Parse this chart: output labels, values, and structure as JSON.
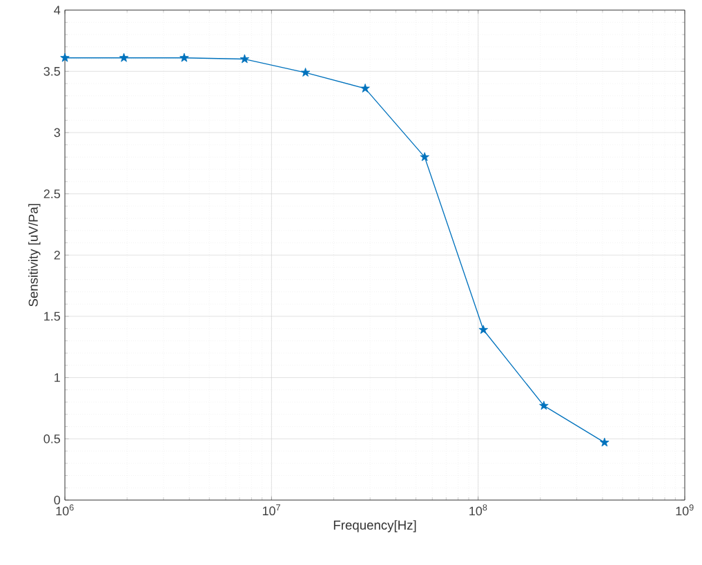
{
  "chart_data": {
    "type": "line",
    "xlabel": "Frequency[Hz]",
    "ylabel": "Sensitivity [uV/Pa]",
    "x": [
      1000000,
      1930000,
      3780000,
      7410000,
      14600000,
      28400000,
      55100000,
      106000000,
      208000000,
      409000000
    ],
    "series": [
      {
        "color": "#0072bd",
        "values": [
          3.61,
          3.61,
          3.61,
          3.6,
          3.49,
          3.36,
          2.8,
          1.39,
          0.77,
          0.47
        ]
      }
    ],
    "log": "x",
    "xlim": [
      1000000,
      1000000000
    ],
    "xticks": [
      {
        "value": 1000000,
        "label": "10$^{6}$"
      },
      {
        "value": 10000000,
        "label": "10$^{7}$"
      },
      {
        "value": 100000000,
        "label": "10$^{8}$"
      },
      {
        "value": 1000000000,
        "label": "10$^{9}$"
      }
    ],
    "ylim": [
      0,
      4
    ],
    "yticks": [
      0,
      0.5,
      1,
      1.5,
      2,
      2.5,
      3,
      3.5,
      4
    ],
    "grid": true,
    "marker": "star",
    "line_style": "solid"
  }
}
